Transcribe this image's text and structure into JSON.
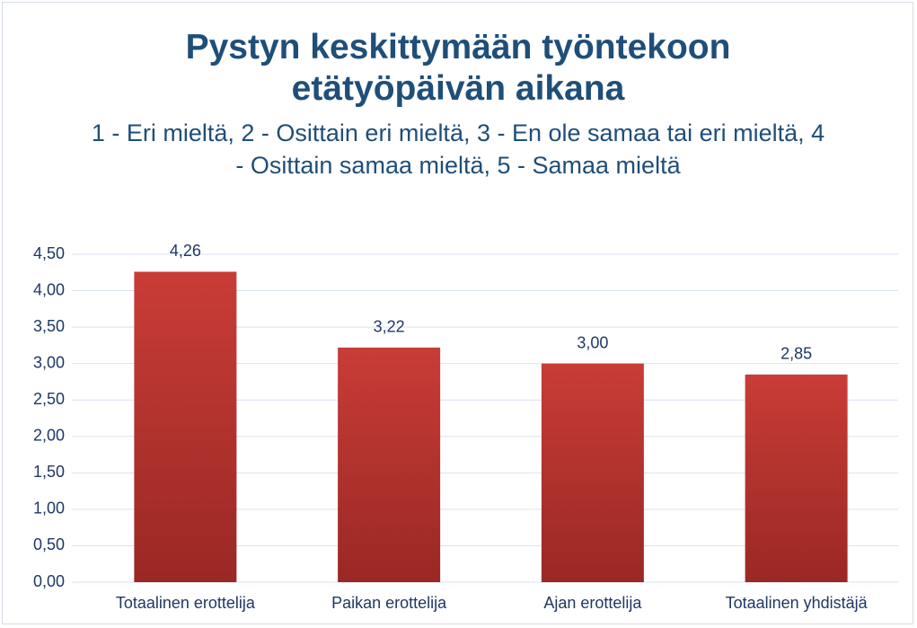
{
  "chart_data": {
    "type": "bar",
    "title": "Pystyn keskittymään työntekoon etätyöpäivän aikana",
    "subtitle": "1 - Eri mieltä, 2 - Osittain eri mieltä, 3 - En ole samaa tai eri mieltä, 4 - Osittain samaa mieltä, 5 - Samaa mieltä",
    "categories": [
      "Totaalinen erottelija",
      "Paikan erottelija",
      "Ajan erottelija",
      "Totaalinen yhdistäjä"
    ],
    "values": [
      4.26,
      3.22,
      3.0,
      2.85
    ],
    "value_labels": [
      "4,26",
      "3,22",
      "3,00",
      "2,85"
    ],
    "color": "#c93c37",
    "ylim": [
      0,
      4.5
    ],
    "yticks": [
      {
        "value": 0,
        "label": "0,00"
      },
      {
        "value": 0.5,
        "label": "0,50"
      },
      {
        "value": 1,
        "label": "1,00"
      },
      {
        "value": 1.5,
        "label": "1,50"
      },
      {
        "value": 2,
        "label": "2,00"
      },
      {
        "value": 2.5,
        "label": "2,50"
      },
      {
        "value": 3,
        "label": "3,00"
      },
      {
        "value": 3.5,
        "label": "3,50"
      },
      {
        "value": 4,
        "label": "4,00"
      },
      {
        "value": 4.5,
        "label": "4,50"
      }
    ],
    "grid": true
  }
}
